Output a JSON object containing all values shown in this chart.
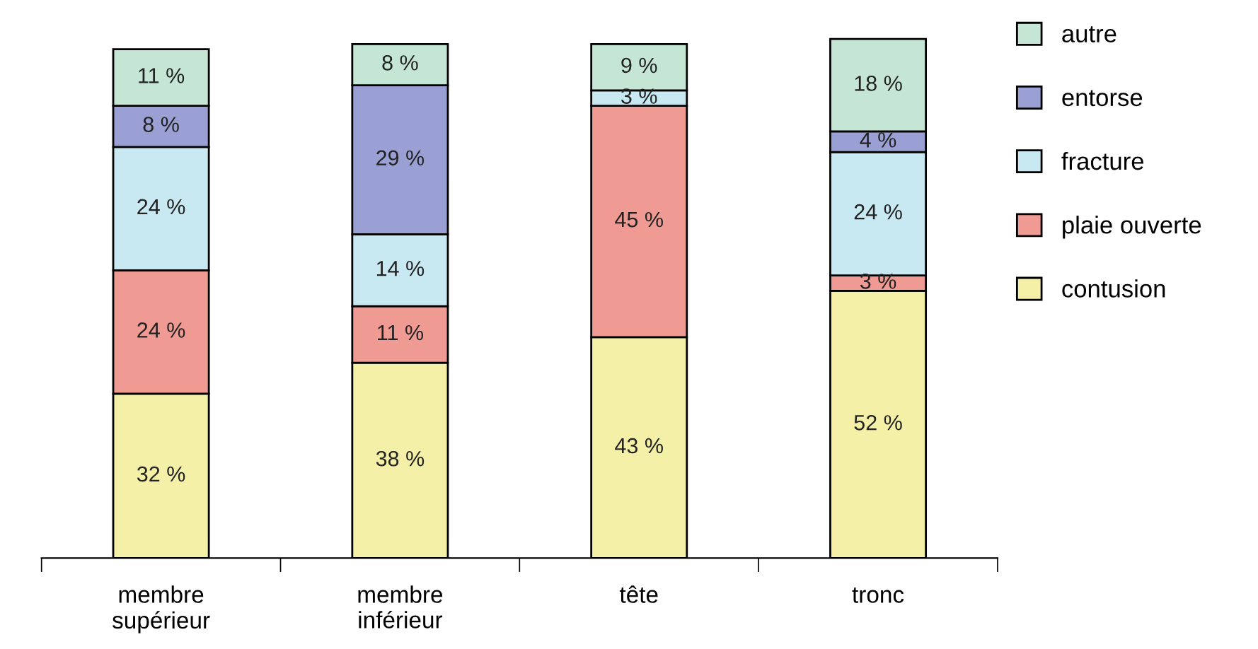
{
  "chart_data": {
    "type": "bar",
    "stacked": true,
    "categories": [
      "membre supérieur",
      "membre inférieur",
      "tête",
      "tronc"
    ],
    "series": [
      {
        "name": "contusion",
        "color": "#f5f0a8",
        "values": [
          32,
          38,
          43,
          52
        ],
        "value_labels": [
          "32 %",
          "38 %",
          "43 %",
          "52 %"
        ]
      },
      {
        "name": "plaie ouverte",
        "color": "#f09a94",
        "values": [
          24,
          11,
          45,
          3
        ],
        "value_labels": [
          "24 %",
          "11 %",
          "45 %",
          "3 %"
        ]
      },
      {
        "name": "fracture",
        "color": "#c8e8f2",
        "values": [
          24,
          14,
          3,
          24
        ],
        "value_labels": [
          "24 %",
          "14 %",
          "3 %",
          "24 %"
        ]
      },
      {
        "name": "entorse",
        "color": "#9aa0d4",
        "values": [
          8,
          29,
          null,
          4
        ],
        "value_labels": [
          "8 %",
          "29 %",
          null,
          "4 %"
        ]
      },
      {
        "name": "autre",
        "color": "#c5e5d5",
        "values": [
          11,
          8,
          9,
          18
        ],
        "value_labels": [
          "11 %",
          "8 %",
          "9 %",
          "18 %"
        ]
      }
    ],
    "legend": "right"
  }
}
